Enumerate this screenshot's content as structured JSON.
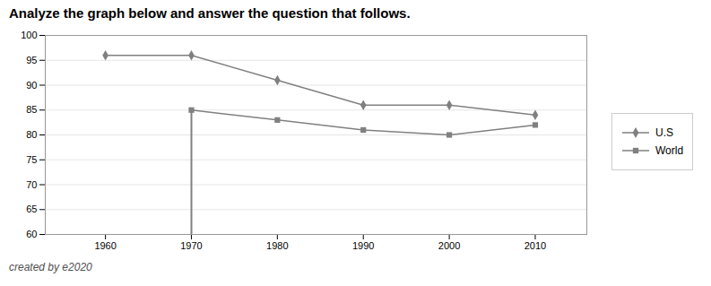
{
  "chart_data": {
    "type": "line",
    "title": "Analyze the graph below and answer the question that follows.",
    "caption": "created by e2020",
    "x": [
      1960,
      1970,
      1980,
      1990,
      2000,
      2010
    ],
    "series": [
      {
        "name": "U.S",
        "color": "#808080",
        "marker": "diamond",
        "values": [
          96,
          96,
          91,
          86,
          86,
          84
        ]
      },
      {
        "name": "World",
        "color": "#808080",
        "marker": "square",
        "values": [
          null,
          85,
          83,
          81,
          80,
          82
        ]
      }
    ],
    "annotations": [
      {
        "type": "line",
        "x": 1970,
        "y_from": 60,
        "y_to": 85,
        "color": "#808080"
      }
    ],
    "xlim": [
      1953,
      2016
    ],
    "xticks": [
      1960,
      1970,
      1980,
      1990,
      2000,
      2010
    ],
    "ylim": [
      60,
      100
    ],
    "yticks": [
      60,
      65,
      70,
      75,
      80,
      85,
      90,
      95,
      100
    ],
    "grid": true,
    "legend": "right"
  }
}
